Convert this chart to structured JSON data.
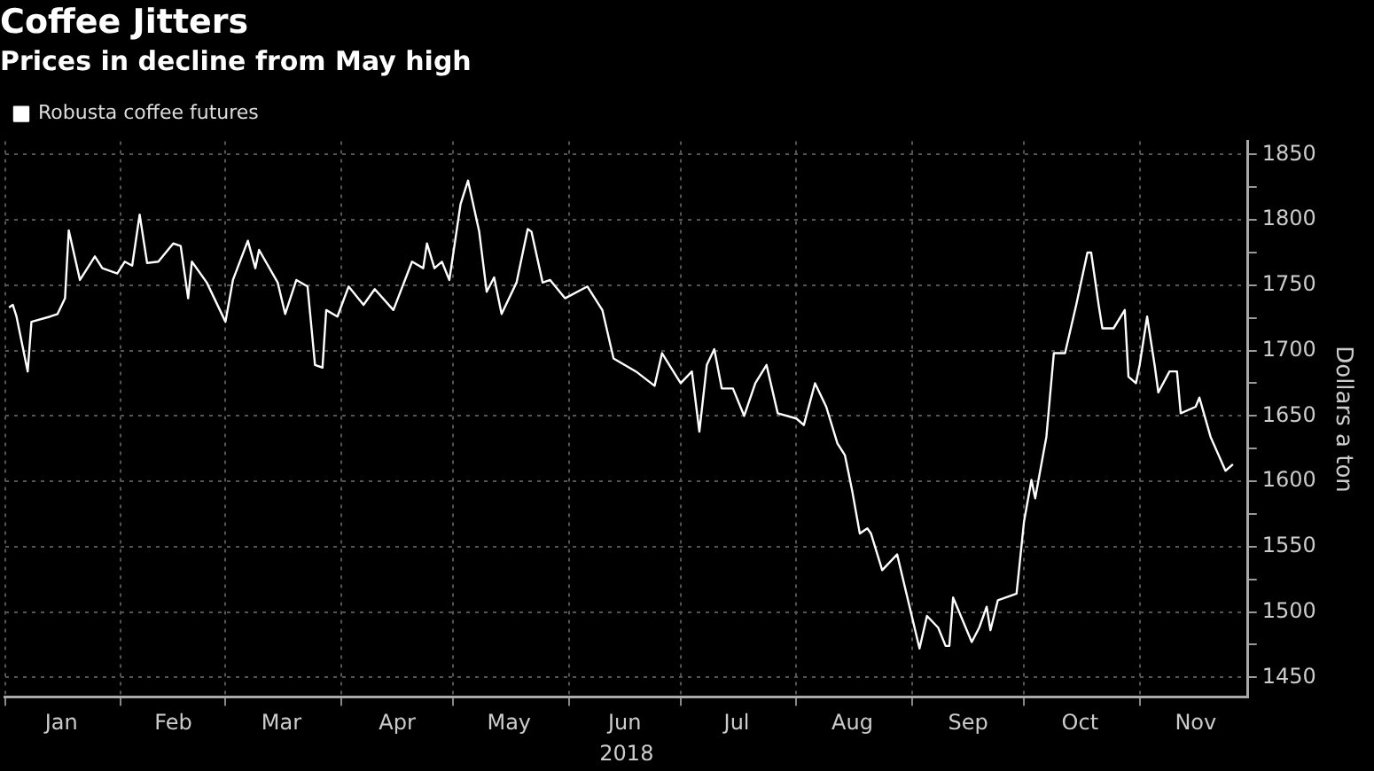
{
  "chart_data": {
    "type": "line",
    "title": "Coffee Jitters",
    "subtitle": "Prices in decline from May high",
    "xlabel": "2018",
    "ylabel": "Dollars a ton",
    "x": [
      "2018-01-02",
      "2018-01-03",
      "2018-01-04",
      "2018-01-07",
      "2018-01-08",
      "2018-01-13",
      "2018-01-15",
      "2018-01-17",
      "2018-01-18",
      "2018-01-21",
      "2018-01-23",
      "2018-01-25",
      "2018-01-27",
      "2018-01-31",
      "2018-02-02",
      "2018-02-04",
      "2018-02-06",
      "2018-02-08",
      "2018-02-11",
      "2018-02-15",
      "2018-02-17",
      "2018-02-19",
      "2018-02-20",
      "2018-02-24",
      "2018-03-01",
      "2018-03-03",
      "2018-03-07",
      "2018-03-09",
      "2018-03-10",
      "2018-03-15",
      "2018-03-17",
      "2018-03-20",
      "2018-03-23",
      "2018-03-25",
      "2018-03-27",
      "2018-03-28",
      "2018-03-31",
      "2018-04-03",
      "2018-04-07",
      "2018-04-10",
      "2018-04-15",
      "2018-04-20",
      "2018-04-23",
      "2018-04-24",
      "2018-04-26",
      "2018-04-28",
      "2018-04-30",
      "2018-05-03",
      "2018-05-05",
      "2018-05-08",
      "2018-05-10",
      "2018-05-12",
      "2018-05-14",
      "2018-05-18",
      "2018-05-21",
      "2018-05-22",
      "2018-05-25",
      "2018-05-27",
      "2018-05-31",
      "2018-06-06",
      "2018-06-10",
      "2018-06-13",
      "2018-06-19",
      "2018-06-24",
      "2018-06-26",
      "2018-07-01",
      "2018-07-04",
      "2018-07-06",
      "2018-07-08",
      "2018-07-10",
      "2018-07-12",
      "2018-07-15",
      "2018-07-18",
      "2018-07-21",
      "2018-07-24",
      "2018-07-27",
      "2018-08-01",
      "2018-08-03",
      "2018-08-06",
      "2018-08-09",
      "2018-08-12",
      "2018-08-14",
      "2018-08-16",
      "2018-08-18",
      "2018-08-20",
      "2018-08-21",
      "2018-08-24",
      "2018-08-28",
      "2018-08-29",
      "2018-09-03",
      "2018-09-05",
      "2018-09-08",
      "2018-09-10",
      "2018-09-11",
      "2018-09-12",
      "2018-09-17",
      "2018-09-19",
      "2018-09-21",
      "2018-09-22",
      "2018-09-24",
      "2018-09-29",
      "2018-10-01",
      "2018-10-03",
      "2018-10-04",
      "2018-10-07",
      "2018-10-09",
      "2018-10-11",
      "2018-10-12",
      "2018-10-15",
      "2018-10-18",
      "2018-10-19",
      "2018-10-21",
      "2018-10-22",
      "2018-10-25",
      "2018-10-28",
      "2018-10-29",
      "2018-10-31",
      "2018-11-01",
      "2018-11-03",
      "2018-11-05",
      "2018-11-06",
      "2018-11-09",
      "2018-11-11",
      "2018-11-12",
      "2018-11-16",
      "2018-11-17",
      "2018-11-20",
      "2018-11-24",
      "2018-11-26"
    ],
    "series": [
      {
        "name": "Robusta coffee futures",
        "color": "#ffffff",
        "values": [
          1733,
          1735,
          1726,
          1684,
          1722,
          1726,
          1728,
          1740,
          1792,
          1754,
          1763,
          1772,
          1763,
          1759,
          1768,
          1765,
          1804,
          1767,
          1768,
          1782,
          1780,
          1740,
          1768,
          1752,
          1722,
          1754,
          1784,
          1763,
          1777,
          1752,
          1728,
          1754,
          1749,
          1689,
          1687,
          1731,
          1726,
          1749,
          1735,
          1747,
          1731,
          1768,
          1763,
          1782,
          1763,
          1768,
          1754,
          1812,
          1830,
          1791,
          1745,
          1756,
          1728,
          1752,
          1793,
          1791,
          1752,
          1754,
          1740,
          1749,
          1731,
          1694,
          1684,
          1673,
          1698,
          1675,
          1684,
          1638,
          1689,
          1701,
          1671,
          1671,
          1650,
          1675,
          1689,
          1652,
          1648,
          1643,
          1675,
          1657,
          1629,
          1620,
          1592,
          1560,
          1564,
          1560,
          1532,
          1544,
          1532,
          1472,
          1497,
          1488,
          1474,
          1474,
          1511,
          1477,
          1488,
          1504,
          1486,
          1509,
          1514,
          1569,
          1601,
          1587,
          1634,
          1698,
          1698,
          1698,
          1735,
          1775,
          1775,
          1735,
          1717,
          1717,
          1731,
          1680,
          1675,
          1689,
          1726,
          1689,
          1668,
          1684,
          1684,
          1652,
          1657,
          1664,
          1634,
          1608,
          1613
        ]
      }
    ],
    "xlim": [
      "2018-01-01",
      "2018-11-30"
    ],
    "xticks": [
      {
        "value": "2018-01-01",
        "label": null
      },
      {
        "value": "2018-01-16",
        "label": "Jan"
      },
      {
        "value": "2018-02-01",
        "label": null
      },
      {
        "value": "2018-02-15",
        "label": "Feb"
      },
      {
        "value": "2018-03-01",
        "label": null
      },
      {
        "value": "2018-03-16",
        "label": "Mar"
      },
      {
        "value": "2018-04-01",
        "label": null
      },
      {
        "value": "2018-04-16",
        "label": "Apr"
      },
      {
        "value": "2018-05-01",
        "label": null
      },
      {
        "value": "2018-05-16",
        "label": "May"
      },
      {
        "value": "2018-06-01",
        "label": null
      },
      {
        "value": "2018-06-16",
        "label": "Jun"
      },
      {
        "value": "2018-07-01",
        "label": null
      },
      {
        "value": "2018-07-16",
        "label": "Jul"
      },
      {
        "value": "2018-08-01",
        "label": null
      },
      {
        "value": "2018-08-16",
        "label": "Aug"
      },
      {
        "value": "2018-09-01",
        "label": null
      },
      {
        "value": "2018-09-16",
        "label": "Sep"
      },
      {
        "value": "2018-10-01",
        "label": null
      },
      {
        "value": "2018-10-16",
        "label": "Oct"
      },
      {
        "value": "2018-11-01",
        "label": null
      },
      {
        "value": "2018-11-16",
        "label": "Nov"
      }
    ],
    "ylim": [
      1435,
      1860
    ],
    "yticks": [
      1450,
      {
        "value": 1475,
        "label": null
      },
      1500,
      {
        "value": 1525,
        "label": null
      },
      1550,
      {
        "value": 1575,
        "label": null
      },
      1600,
      {
        "value": 1625,
        "label": null
      },
      1650,
      {
        "value": 1675,
        "label": null
      },
      1700,
      {
        "value": 1725,
        "label": null
      },
      1750,
      {
        "value": 1775,
        "label": null
      },
      1800,
      {
        "value": 1825,
        "label": null
      },
      1850
    ],
    "grid": true,
    "legend": "top left"
  }
}
